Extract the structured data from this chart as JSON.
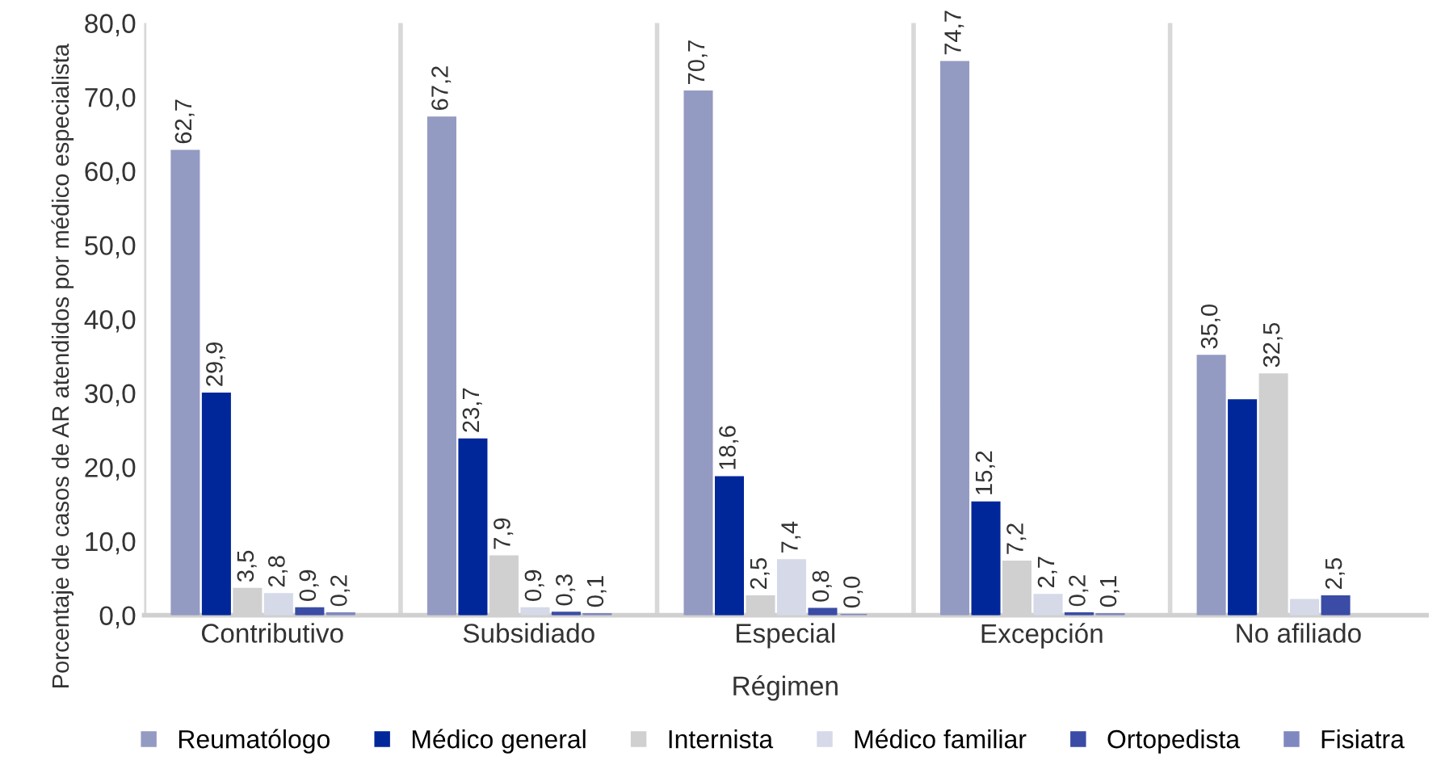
{
  "chart_data": {
    "type": "bar",
    "xlabel": "Régimen",
    "ylabel": "Porcentaje de casos de AR atendidos por médico especialista",
    "categories": [
      "Contributivo",
      "Subsidiado",
      "Especial",
      "Excepción",
      "No afiliado"
    ],
    "series": [
      {
        "name": "Reumatólogo",
        "color": "#949bc2",
        "values": [
          62.7,
          67.2,
          70.7,
          74.7,
          35.0
        ],
        "value_labels": [
          "62,7",
          "67,2",
          "70,7",
          "74,7",
          "35,0"
        ]
      },
      {
        "name": "Médico general",
        "color": "#00279a",
        "values": [
          29.9,
          23.7,
          18.6,
          15.2,
          29.0
        ],
        "value_labels": [
          "29,9",
          "23,7",
          "18,6",
          "15,2",
          null
        ]
      },
      {
        "name": "Internista",
        "color": "#d0d0d0",
        "values": [
          3.5,
          7.9,
          2.5,
          7.2,
          32.5
        ],
        "value_labels": [
          "3,5",
          "7,9",
          "2,5",
          "7,2",
          "32,5"
        ]
      },
      {
        "name": "Médico familiar",
        "color": "#d5d9e8",
        "values": [
          2.8,
          0.9,
          7.4,
          2.7,
          2.0
        ],
        "value_labels": [
          "2,8",
          "0,9",
          "7,4",
          "2,7",
          null
        ]
      },
      {
        "name": "Ortopedista",
        "color": "#3a4ca6",
        "values": [
          0.9,
          0.3,
          0.8,
          0.2,
          2.5
        ],
        "value_labels": [
          "0,9",
          "0,3",
          "0,8",
          "0,2",
          "2,5"
        ]
      },
      {
        "name": "Fisiatra",
        "color": "#8088c0",
        "values": [
          0.2,
          0.1,
          0.0,
          0.1,
          null
        ],
        "value_labels": [
          "0,2",
          "0,1",
          "0,0",
          "0,1",
          null
        ]
      }
    ],
    "ylim": [
      0,
      80
    ],
    "yticks": [
      {
        "value": 0,
        "label": "0,0"
      },
      {
        "value": 10,
        "label": "10,0"
      },
      {
        "value": 20,
        "label": "20,0"
      },
      {
        "value": 30,
        "label": "30,0"
      },
      {
        "value": 40,
        "label": "40,0"
      },
      {
        "value": 50,
        "label": "50,0"
      },
      {
        "value": 60,
        "label": "60,0"
      },
      {
        "value": 70,
        "label": "70,0"
      },
      {
        "value": 80,
        "label": "80,0"
      }
    ],
    "grid": "x",
    "legend": "bottom"
  }
}
